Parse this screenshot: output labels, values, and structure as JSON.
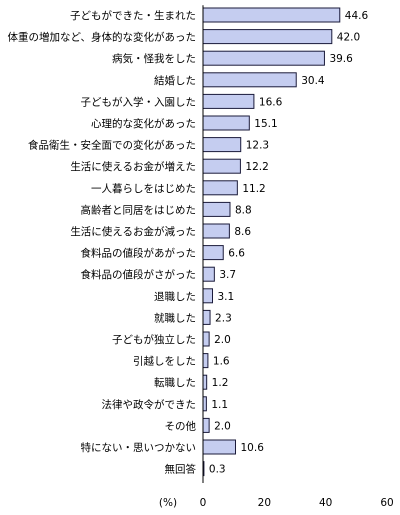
{
  "chart_data": {
    "type": "bar",
    "orientation": "horizontal",
    "categories": [
      "子どもができた・生まれた",
      "体重の増加など、身体的な変化があった",
      "病気・怪我をした",
      "結婚した",
      "子どもが入学・入園した",
      "心理的な変化があった",
      "食品衛生・安全面での変化があった",
      "生活に使えるお金が増えた",
      "一人暮らしをはじめた",
      "高齢者と同居をはじめた",
      "生活に使えるお金が減った",
      "食料品の値段があがった",
      "食料品の値段がさがった",
      "退職した",
      "就職した",
      "子どもが独立した",
      "引越しをした",
      "転職した",
      "法律や政令ができた",
      "その他",
      "特にない・思いつかない",
      "無回答"
    ],
    "values": [
      44.6,
      42.0,
      39.6,
      30.4,
      16.6,
      15.1,
      12.3,
      12.2,
      11.2,
      8.8,
      8.6,
      6.6,
      3.7,
      3.1,
      2.3,
      2.0,
      1.6,
      1.2,
      1.1,
      2.0,
      10.6,
      0.3
    ],
    "value_labels": [
      "44.6",
      "42.0",
      "39.6",
      "30.4",
      "16.6",
      "15.1",
      "12.3",
      "12.2",
      "11.2",
      "8.8",
      "8.6",
      "6.6",
      "3.7",
      "3.1",
      "2.3",
      "2.0",
      "1.6",
      "1.2",
      "1.1",
      "2.0",
      "10.6",
      "0.3"
    ],
    "xlim": [
      0,
      60
    ],
    "xticks": [
      0,
      20,
      40,
      60
    ],
    "xtick_labels": [
      "0",
      "20",
      "40",
      "60"
    ],
    "xlabel": "(%)",
    "grid": false,
    "bar_fill": "#c5cdf0",
    "bar_stroke": "#1a1a3a"
  }
}
